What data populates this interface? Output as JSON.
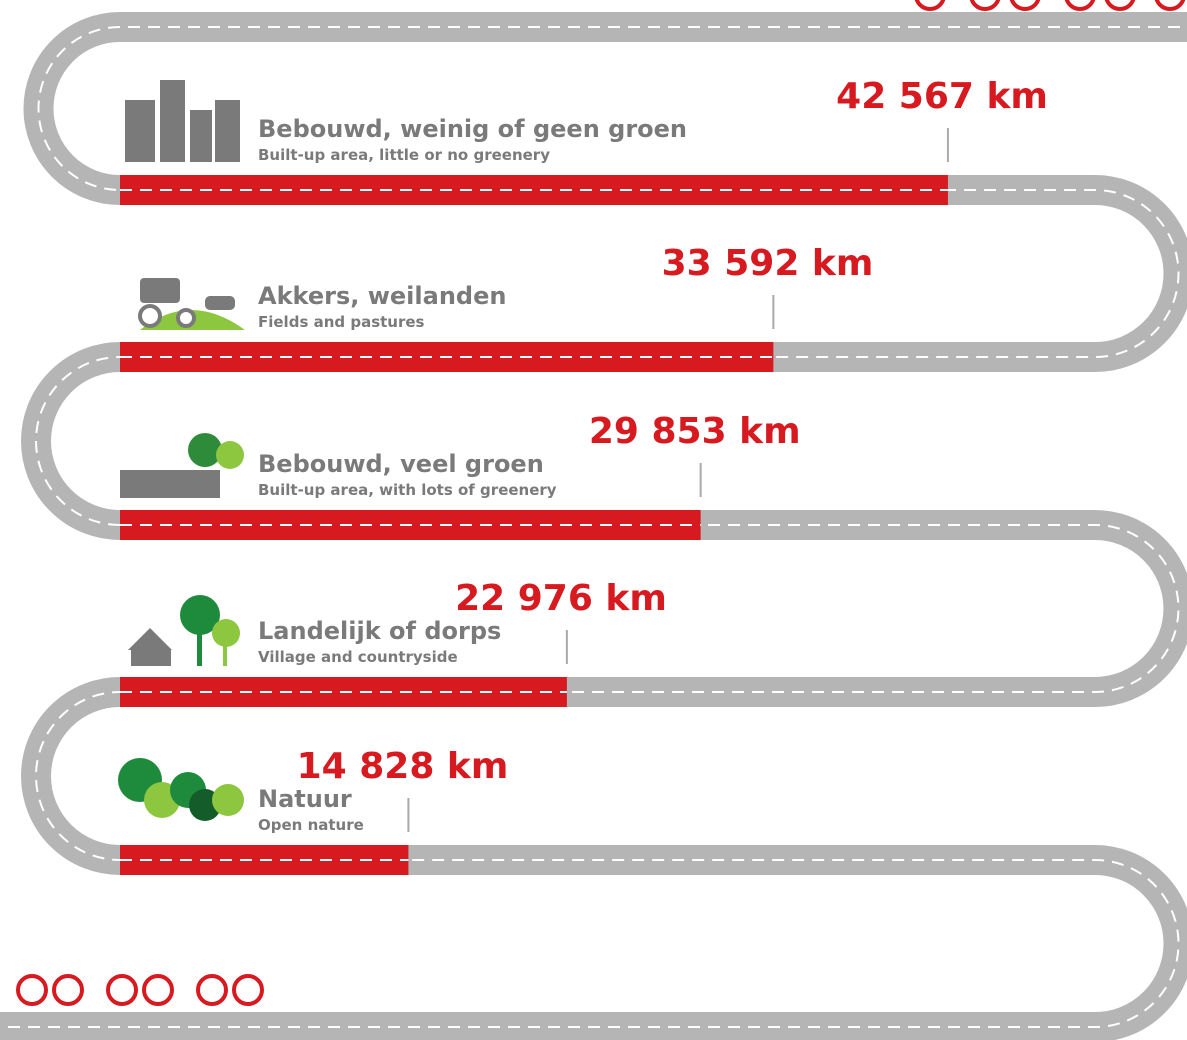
{
  "chart_data": {
    "type": "bar",
    "categories": [
      "Bebouwd, weinig of geen groen",
      "Akkers, weilanden",
      "Bebouwd, veel groen",
      "Landelijk of dorps",
      "Natuur"
    ],
    "category_subtitles": [
      "Built-up area, little or no greenery",
      "Fields and pastures",
      "Built-up area, with lots of greenery",
      "Village and countryside",
      "Open nature"
    ],
    "values": [
      42567,
      33592,
      29853,
      22976,
      14828
    ],
    "value_labels": [
      "42 567 km",
      "33 592 km",
      "29 853 km",
      "22 976 km",
      "14 828 km"
    ],
    "color": "#d71920"
  }
}
